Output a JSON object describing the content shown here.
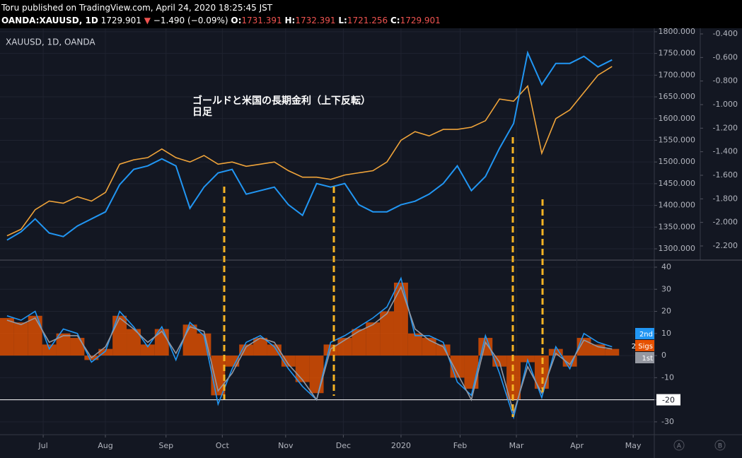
{
  "header": {
    "published": "Toru published on TradingView.com, April 24, 2020 18:25:45 JST",
    "symbol": "OANDA:XAUUSD, 1D",
    "last": "1729.901",
    "arrow": "▼",
    "change": "−1.490 (−0.09%)",
    "o_label": "O:",
    "o": "1731.391",
    "h_label": "H:",
    "h": "1732.391",
    "l_label": "L:",
    "l": "1721.256",
    "c_label": "C:",
    "c": "1729.901"
  },
  "buttons": [
    "A",
    "B"
  ],
  "chart_data": [
    {
      "type": "line",
      "title": "XAUUSD, 1D, OANDA",
      "annotations": [
        "ゴールドと米国の長期金利（上下反転）",
        "日足"
      ],
      "x": [
        0,
        1,
        2,
        3,
        4,
        5,
        6,
        7,
        8,
        9,
        10,
        11,
        12,
        13,
        14,
        15,
        16,
        17,
        18,
        19,
        20,
        21,
        22,
        23,
        24,
        25,
        26,
        27,
        28,
        29,
        30,
        31,
        32,
        33,
        34,
        35,
        36,
        37,
        38,
        39,
        40,
        41,
        42,
        43
      ],
      "xlim": [
        -0.5,
        46
      ],
      "ylim": [
        1274,
        1808
      ],
      "yticks": [
        {
          "value": 1800,
          "label": "1800.000"
        },
        {
          "value": 1750,
          "label": "1750.000"
        },
        {
          "value": 1700,
          "label": "1700.000"
        },
        {
          "value": 1650,
          "label": "1650.000"
        },
        {
          "value": 1600,
          "label": "1600.000"
        },
        {
          "value": 1550,
          "label": "1550.000"
        },
        {
          "value": 1500,
          "label": "1500.000"
        },
        {
          "value": 1450,
          "label": "1450.000"
        },
        {
          "value": 1400,
          "label": "1400.000"
        },
        {
          "value": 1350,
          "label": "1350.000"
        },
        {
          "value": 1300,
          "label": "1300.000"
        }
      ],
      "y2lim": [
        -2.32,
        -0.352
      ],
      "y2ticks": [
        {
          "value": -0.4,
          "label": "-0.400"
        },
        {
          "value": -0.6,
          "label": "-0.600"
        },
        {
          "value": -0.8,
          "label": "-0.800"
        },
        {
          "value": -1.0,
          "label": "-1.000"
        },
        {
          "value": -1.2,
          "label": "-1.200"
        },
        {
          "value": -1.4,
          "label": "-1.400"
        },
        {
          "value": -1.6,
          "label": "-1.600"
        },
        {
          "value": -1.8,
          "label": "-1.800"
        },
        {
          "value": -2.0,
          "label": "-2.000"
        },
        {
          "value": -2.2,
          "label": "-2.200"
        }
      ],
      "grid": true,
      "series": [
        {
          "color": "#f0a43a",
          "values": [
            1330,
            1345,
            1390,
            1410,
            1405,
            1420,
            1410,
            1430,
            1495,
            1505,
            1510,
            1530,
            1510,
            1500,
            1515,
            1495,
            1500,
            1490,
            1495,
            1500,
            1480,
            1465,
            1465,
            1460,
            1470,
            1475,
            1480,
            1500,
            1550,
            1570,
            1560,
            1575,
            1575,
            1580,
            1595,
            1645,
            1640,
            1675,
            1520,
            1600,
            1620,
            1660,
            1700,
            1720
          ]
        },
        {
          "color": "#2196f3",
          "axis": "y2",
          "values": [
            -2.15,
            -2.08,
            -1.97,
            -2.09,
            -2.12,
            -2.03,
            -1.97,
            -1.91,
            -1.68,
            -1.55,
            -1.52,
            -1.46,
            -1.52,
            -1.88,
            -1.7,
            -1.58,
            -1.55,
            -1.76,
            -1.73,
            -1.7,
            -1.85,
            -1.94,
            -1.67,
            -1.7,
            -1.67,
            -1.85,
            -1.91,
            -1.91,
            -1.85,
            -1.82,
            -1.76,
            -1.67,
            -1.52,
            -1.73,
            -1.61,
            -1.37,
            -1.16,
            -0.56,
            -0.83,
            -0.65,
            -0.65,
            -0.59,
            -0.68,
            -0.62
          ]
        }
      ]
    },
    {
      "type": "line",
      "x": [
        0,
        1,
        2,
        3,
        4,
        5,
        6,
        7,
        8,
        9,
        10,
        11,
        12,
        13,
        14,
        15,
        16,
        17,
        18,
        19,
        20,
        21,
        22,
        23,
        24,
        25,
        26,
        27,
        28,
        29,
        30,
        31,
        32,
        33,
        34,
        35,
        36,
        37,
        38,
        39,
        40,
        41,
        42,
        43
      ],
      "xlim": [
        -0.5,
        46
      ],
      "xticks": [
        {
          "value": 2.57,
          "label": "Jul"
        },
        {
          "value": 6.99,
          "label": "Aug"
        },
        {
          "value": 11.3,
          "label": "Sep"
        },
        {
          "value": 15.3,
          "label": "Oct"
        },
        {
          "value": 19.8,
          "label": "Nov"
        },
        {
          "value": 23.9,
          "label": "Dec"
        },
        {
          "value": 28.0,
          "label": "2020"
        },
        {
          "value": 32.2,
          "label": "Feb"
        },
        {
          "value": 36.2,
          "label": "Mar"
        },
        {
          "value": 40.5,
          "label": "Apr"
        },
        {
          "value": 44.5,
          "label": "May"
        }
      ],
      "ylim": [
        -35.8,
        43.2
      ],
      "yticks": [
        40,
        30,
        20,
        10,
        0,
        -10,
        -20,
        -30
      ],
      "hline": -20,
      "grid": true,
      "series": [
        {
          "name": "2nd",
          "color": "#2196f3",
          "values": [
            18,
            16,
            20,
            3,
            12,
            10,
            -3,
            2,
            20,
            13,
            4,
            13,
            -2,
            15,
            9,
            -22,
            -6,
            6,
            9,
            4,
            -6,
            -14,
            -20,
            6,
            9,
            13,
            17,
            22,
            35,
            9,
            9,
            6,
            -12,
            -18,
            9,
            -8,
            -28,
            -2,
            -19,
            4,
            -6,
            10,
            6,
            4
          ]
        },
        {
          "name": "2 Sigs",
          "color": "#e65100",
          "kind": "histogram",
          "values": [
            17,
            15,
            18,
            5,
            10,
            8,
            -2,
            3,
            18,
            12,
            5,
            12,
            0,
            14,
            10,
            -18,
            -5,
            5,
            8,
            5,
            -5,
            -12,
            -17,
            5,
            8,
            12,
            15,
            20,
            33,
            10,
            8,
            5,
            -10,
            -15,
            8,
            -5,
            -20,
            -3,
            -15,
            3,
            -5,
            8,
            5,
            3
          ]
        },
        {
          "name": "1st",
          "color": "#9598a1",
          "values": [
            16,
            14,
            17,
            6,
            9,
            9,
            -1,
            4,
            17,
            12,
            6,
            11,
            1,
            13,
            11,
            -16,
            -8,
            4,
            8,
            6,
            -4,
            -11,
            -20,
            3,
            7,
            11,
            14,
            19,
            31,
            12,
            7,
            4,
            -8,
            -20,
            6,
            -3,
            -26,
            -5,
            -17,
            1,
            -4,
            7,
            4,
            3
          ]
        }
      ]
    }
  ]
}
